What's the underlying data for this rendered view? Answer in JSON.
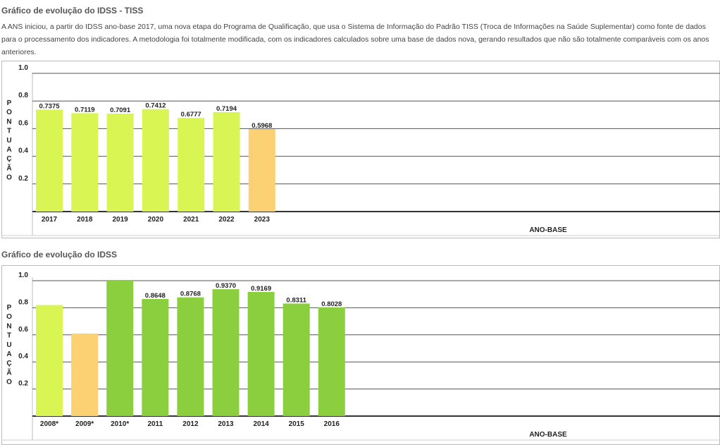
{
  "section1": {
    "title": "Gráfico de evolução do IDSS - TISS",
    "description": "A ANS iniciou, a partir do IDSS ano-base 2017, uma nova etapa do Programa de Qualificação, que usa o Sistema de Informação do Padrão TISS (Troca de Informações na Saúde Suplementar) como fonte de dados para o processamento dos indicadores. A metodologia foi totalmente modificada, com os indicadores calculados sobre uma base de dados nova, gerando resultados que não são totalmente comparáveis com os anos anteriores."
  },
  "section2": {
    "title": "Gráfico de evolução do IDSS"
  },
  "colors": {
    "bright_green": "#d9f553",
    "orange": "#fbd173",
    "green": "#8ccf3e",
    "grid": "#555555"
  },
  "chart_data": [
    {
      "type": "bar",
      "categories": [
        "2017",
        "2018",
        "2019",
        "2020",
        "2021",
        "2022",
        "2023"
      ],
      "values": [
        0.7375,
        0.7119,
        0.7091,
        0.7412,
        0.6777,
        0.7194,
        0.5968
      ],
      "value_labels": [
        "0.7375",
        "0.7119",
        "0.7091",
        "0.7412",
        "0.6777",
        "0.7194",
        "0.5968"
      ],
      "bar_colors": [
        "bright_green",
        "bright_green",
        "bright_green",
        "bright_green",
        "bright_green",
        "bright_green",
        "orange"
      ],
      "xlabel": "ANO-BASE",
      "ylabel": "PONTUAÇÃO",
      "yticks": [
        "1.0",
        "0.8",
        "0.6",
        "0.4",
        "0.2"
      ],
      "ylim": [
        0,
        1.0
      ],
      "grid": true
    },
    {
      "type": "bar",
      "categories": [
        "2008*",
        "2009*",
        "2010*",
        "2011",
        "2012",
        "2013",
        "2014",
        "2015",
        "2016"
      ],
      "values": [
        0.82,
        0.61,
        1.0,
        0.8648,
        0.8768,
        0.937,
        0.9169,
        0.8311,
        0.8028
      ],
      "value_labels": [
        "",
        "",
        "",
        "0.8648",
        "0.8768",
        "0.9370",
        "0.9169",
        "0.8311",
        "0.8028"
      ],
      "bar_colors": [
        "bright_green",
        "orange",
        "green",
        "green",
        "green",
        "green",
        "green",
        "green",
        "green"
      ],
      "xlabel": "ANO-BASE",
      "ylabel": "PONTUAÇÃO",
      "yticks": [
        "1.0",
        "0.8",
        "0.6",
        "0.4",
        "0.2"
      ],
      "ylim": [
        0,
        1.0
      ],
      "grid": true
    }
  ]
}
